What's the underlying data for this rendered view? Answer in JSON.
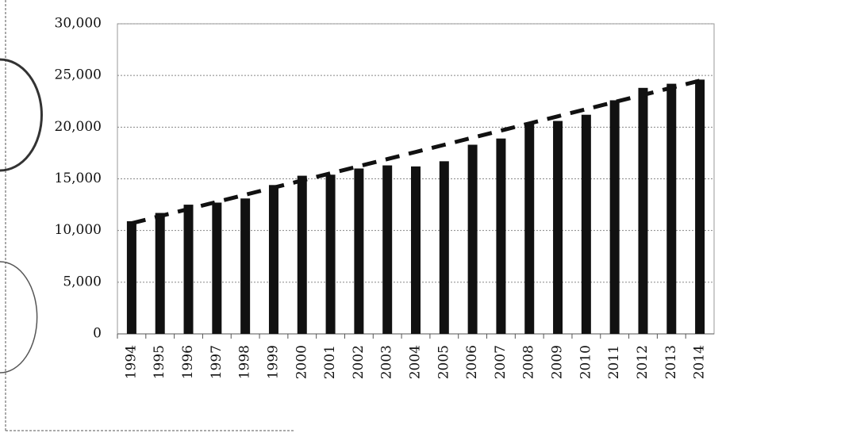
{
  "chart_data": {
    "type": "bar",
    "categories": [
      "1994",
      "1995",
      "1996",
      "1997",
      "1998",
      "1999",
      "2000",
      "2001",
      "2002",
      "2003",
      "2004",
      "2005",
      "2006",
      "2007",
      "2008",
      "2009",
      "2010",
      "2011",
      "2012",
      "2013",
      "2014"
    ],
    "series": [
      {
        "color": "#111111",
        "values": [
          10900,
          11700,
          12500,
          12700,
          13100,
          14400,
          15300,
          15400,
          16000,
          16300,
          16200,
          16700,
          18300,
          18900,
          20300,
          20600,
          21200,
          22600,
          23800,
          24200,
          24600
        ]
      },
      {
        "color": "#111111",
        "line": "dashed",
        "values": [
          10700,
          11390,
          12080,
          12770,
          13460,
          14150,
          14840,
          15530,
          16220,
          16910,
          17600,
          18290,
          18980,
          19670,
          20360,
          21050,
          21740,
          22430,
          23120,
          23810,
          24500
        ]
      }
    ],
    "ylim": [
      0,
      30000
    ],
    "yticks": [
      0,
      {
        "value": 5000,
        "label": "5,000"
      },
      {
        "value": 10000,
        "label": "10,000"
      },
      {
        "value": 15000,
        "label": "15,000"
      },
      {
        "value": 20000,
        "label": "20,000"
      },
      {
        "value": 25000,
        "label": "25,000"
      },
      {
        "value": 30000,
        "label": "30,000"
      }
    ],
    "grid": true
  }
}
